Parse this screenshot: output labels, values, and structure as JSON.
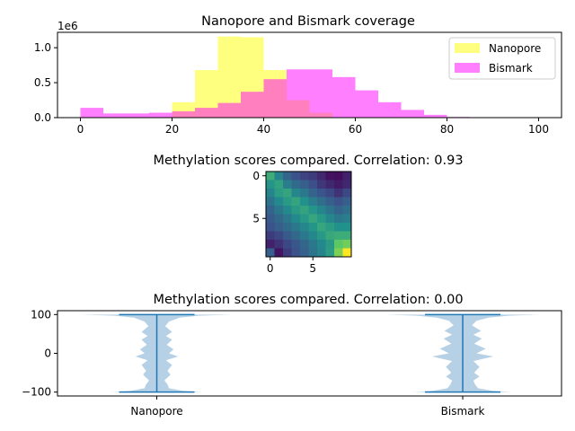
{
  "figure": {
    "background": "#ffffff"
  },
  "chart_data": [
    {
      "type": "bar",
      "subtype": "histogram-overlay",
      "title": "Nanopore and Bismark coverage",
      "xlim": [
        -5,
        105
      ],
      "ylim": [
        0,
        1.22
      ],
      "y_multiplier_label": "1e6",
      "xticks": [
        0,
        20,
        40,
        60,
        80,
        100
      ],
      "yticks": [
        0.0,
        0.5,
        1.0
      ],
      "ytick_labels": [
        "0.0",
        "0.5",
        "1.0"
      ],
      "legend_position": "top-right",
      "series": [
        {
          "name": "Nanopore",
          "color": "#ffff00",
          "opacity": 0.5,
          "bins": [
            [
              20,
              25
            ],
            [
              25,
              30
            ],
            [
              30,
              35
            ],
            [
              35,
              40
            ],
            [
              40,
              45
            ],
            [
              45,
              50
            ],
            [
              50,
              55
            ]
          ],
          "values": [
            0.22,
            0.68,
            1.16,
            1.15,
            0.68,
            0.25,
            0.07
          ]
        },
        {
          "name": "Bismark",
          "color": "#ff00ff",
          "opacity": 0.5,
          "bins": [
            [
              0,
              5
            ],
            [
              5,
              10
            ],
            [
              10,
              15
            ],
            [
              15,
              20
            ],
            [
              20,
              25
            ],
            [
              25,
              30
            ],
            [
              30,
              35
            ],
            [
              35,
              40
            ],
            [
              40,
              45
            ],
            [
              45,
              50
            ],
            [
              50,
              55
            ],
            [
              55,
              60
            ],
            [
              60,
              65
            ],
            [
              65,
              70
            ],
            [
              70,
              75
            ],
            [
              75,
              80
            ],
            [
              80,
              85
            ]
          ],
          "values": [
            0.14,
            0.06,
            0.06,
            0.07,
            0.09,
            0.14,
            0.21,
            0.37,
            0.55,
            0.69,
            0.69,
            0.58,
            0.39,
            0.22,
            0.11,
            0.04,
            0.01
          ]
        }
      ]
    },
    {
      "type": "heatmap",
      "title": "Methylation scores compared. Correlation: 0.93",
      "xticks": [
        0,
        5
      ],
      "yticks": [
        0,
        5
      ],
      "colormap": "viridis",
      "range": [
        0,
        1
      ],
      "matrix": [
        [
          0.62,
          0.45,
          0.32,
          0.25,
          0.2,
          0.18,
          0.12,
          0.05,
          0.04,
          0.1
        ],
        [
          0.52,
          0.57,
          0.42,
          0.35,
          0.3,
          0.24,
          0.17,
          0.12,
          0.08,
          0.12
        ],
        [
          0.45,
          0.55,
          0.58,
          0.46,
          0.4,
          0.32,
          0.26,
          0.22,
          0.15,
          0.22
        ],
        [
          0.38,
          0.47,
          0.54,
          0.58,
          0.5,
          0.42,
          0.36,
          0.3,
          0.25,
          0.3
        ],
        [
          0.32,
          0.4,
          0.47,
          0.54,
          0.58,
          0.52,
          0.45,
          0.38,
          0.32,
          0.36
        ],
        [
          0.28,
          0.34,
          0.4,
          0.47,
          0.53,
          0.59,
          0.53,
          0.46,
          0.4,
          0.42
        ],
        [
          0.25,
          0.3,
          0.35,
          0.4,
          0.46,
          0.52,
          0.59,
          0.55,
          0.5,
          0.5
        ],
        [
          0.18,
          0.22,
          0.28,
          0.34,
          0.4,
          0.46,
          0.53,
          0.6,
          0.62,
          0.62
        ],
        [
          0.1,
          0.15,
          0.22,
          0.27,
          0.33,
          0.4,
          0.47,
          0.54,
          0.74,
          0.78
        ],
        [
          0.3,
          0.06,
          0.18,
          0.25,
          0.31,
          0.38,
          0.45,
          0.55,
          0.8,
          1.0
        ]
      ]
    },
    {
      "type": "violin",
      "title": "Methylation scores compared. Correlation: 0.00",
      "categories": [
        "Nanopore",
        "Bismark"
      ],
      "ylim": [
        -110,
        110
      ],
      "yticks": [
        100,
        0,
        -100
      ],
      "color": "#1f77b4",
      "body_color": "#b6d1e6",
      "extrema": [
        [
          -100,
          100
        ],
        [
          -100,
          100
        ]
      ],
      "profiles": [
        [
          [
            -100,
            0.6
          ],
          [
            -97,
            0.35
          ],
          [
            -90,
            0.16
          ],
          [
            -80,
            0.14
          ],
          [
            -70,
            0.1
          ],
          [
            -55,
            0.18
          ],
          [
            -45,
            0.14
          ],
          [
            -30,
            0.2
          ],
          [
            -18,
            0.12
          ],
          [
            -8,
            0.28
          ],
          [
            0,
            0.16
          ],
          [
            10,
            0.22
          ],
          [
            22,
            0.13
          ],
          [
            35,
            0.2
          ],
          [
            45,
            0.12
          ],
          [
            55,
            0.2
          ],
          [
            70,
            0.11
          ],
          [
            82,
            0.16
          ],
          [
            92,
            0.3
          ],
          [
            97,
            0.55
          ],
          [
            100,
            1.0
          ]
        ],
        [
          [
            -100,
            0.65
          ],
          [
            -97,
            0.4
          ],
          [
            -90,
            0.2
          ],
          [
            -80,
            0.16
          ],
          [
            -70,
            0.14
          ],
          [
            -60,
            0.22
          ],
          [
            -50,
            0.15
          ],
          [
            -35,
            0.22
          ],
          [
            -20,
            0.14
          ],
          [
            -8,
            0.4
          ],
          [
            0,
            0.18
          ],
          [
            12,
            0.3
          ],
          [
            25,
            0.15
          ],
          [
            38,
            0.25
          ],
          [
            48,
            0.14
          ],
          [
            58,
            0.24
          ],
          [
            72,
            0.12
          ],
          [
            84,
            0.18
          ],
          [
            92,
            0.34
          ],
          [
            97,
            0.6
          ],
          [
            100,
            1.0
          ]
        ]
      ]
    }
  ]
}
